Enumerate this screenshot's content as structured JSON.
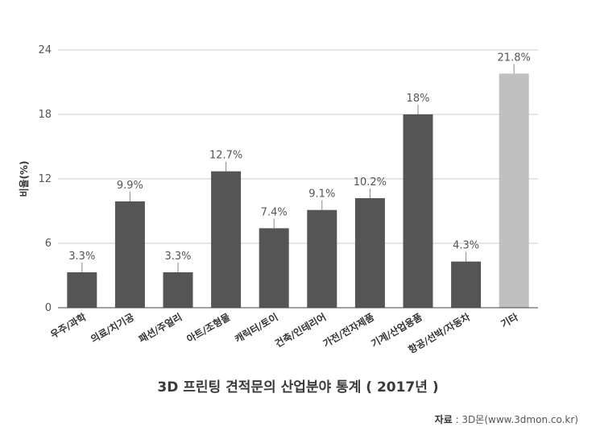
{
  "chart_data": {
    "type": "bar",
    "title": "3D 프린팅 견적문의 산업분야 통계 ( 2017년 )",
    "ylabel": "비율(%)",
    "xlabel": "",
    "ylim": [
      0,
      24
    ],
    "yticks": [
      0,
      6,
      12,
      18,
      24
    ],
    "grid": true,
    "categories": [
      "우주/과학",
      "의료/치기공",
      "패션/주얼리",
      "아트/조형물",
      "캐릭터/토이",
      "건축/인테리어",
      "가전/전자제품",
      "기계/산업용품",
      "항공/선박/자동차",
      "기타"
    ],
    "values": [
      3.3,
      9.9,
      3.3,
      12.7,
      7.4,
      9.1,
      10.2,
      18,
      4.3,
      21.8
    ],
    "value_labels": [
      "3.3%",
      "9.9%",
      "3.3%",
      "12.7%",
      "7.4%",
      "9.1%",
      "10.2%",
      "18%",
      "4.3%",
      "21.8%"
    ],
    "colors": {
      "bar": "#555555",
      "highlight_bar": "#c0c0c0",
      "highlight_index": 9,
      "grid": "#cccccc",
      "axis": "#444444",
      "value_label": "#555555"
    }
  },
  "source": {
    "label": "자료",
    "separator": " : ",
    "text": "3D몬(www.3dmon.co.kr)"
  }
}
